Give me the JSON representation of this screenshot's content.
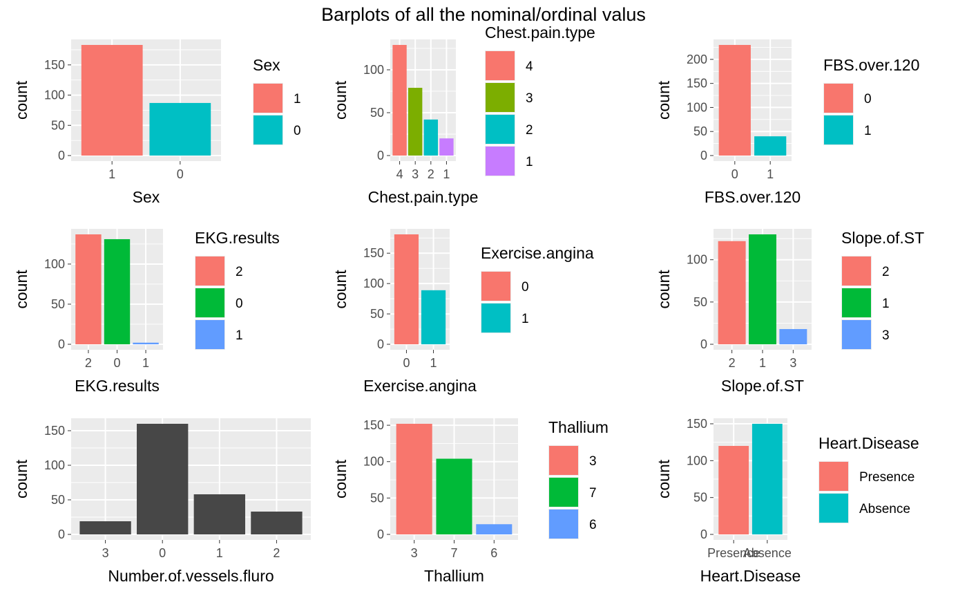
{
  "title": "Barplots of all the nominal/ordinal valus",
  "colors": {
    "panel_bg": "#EBEBEB",
    "grid": "#FFFFFF",
    "axis_text": "#4D4D4D",
    "bar_dark": "#474747"
  },
  "chart_data": [
    {
      "type": "bar",
      "title": "",
      "xlabel": "Sex",
      "ylabel": "count",
      "categories": [
        "1",
        "0"
      ],
      "values": [
        183,
        87
      ],
      "colors": [
        "#F8766D",
        "#00BFC4"
      ],
      "ylim": [
        0,
        183
      ],
      "yticks": [
        0,
        50,
        100,
        150
      ],
      "legend": {
        "title": "Sex",
        "labels": [
          "1",
          "0"
        ],
        "position": "right"
      }
    },
    {
      "type": "bar",
      "title": "",
      "xlabel": "Chest.pain.type",
      "ylabel": "count",
      "categories": [
        "4",
        "3",
        "2",
        "1"
      ],
      "values": [
        129,
        79,
        42,
        20
      ],
      "colors": [
        "#F8766D",
        "#7CAE00",
        "#00BFC4",
        "#C77CFF"
      ],
      "ylim": [
        0,
        129
      ],
      "yticks": [
        0,
        50,
        100
      ],
      "legend": {
        "title": "Chest.pain.type",
        "labels": [
          "4",
          "3",
          "2",
          "1"
        ],
        "position": "right"
      }
    },
    {
      "type": "bar",
      "title": "",
      "xlabel": "FBS.over.120",
      "ylabel": "count",
      "categories": [
        "0",
        "1"
      ],
      "values": [
        230,
        40
      ],
      "colors": [
        "#F8766D",
        "#00BFC4"
      ],
      "ylim": [
        0,
        230
      ],
      "yticks": [
        0,
        50,
        100,
        150,
        200
      ],
      "legend": {
        "title": "FBS.over.120",
        "labels": [
          "0",
          "1"
        ],
        "position": "right"
      }
    },
    {
      "type": "bar",
      "title": "",
      "xlabel": "EKG.results",
      "ylabel": "count",
      "categories": [
        "2",
        "0",
        "1"
      ],
      "values": [
        137,
        131,
        2
      ],
      "colors": [
        "#F8766D",
        "#00BA38",
        "#619CFF"
      ],
      "ylim": [
        0,
        137
      ],
      "yticks": [
        0,
        50,
        100
      ],
      "legend": {
        "title": "EKG.results",
        "labels": [
          "2",
          "0",
          "1"
        ],
        "position": "right"
      }
    },
    {
      "type": "bar",
      "title": "",
      "xlabel": "Exercise.angina",
      "ylabel": "count",
      "categories": [
        "0",
        "1"
      ],
      "values": [
        181,
        89
      ],
      "colors": [
        "#F8766D",
        "#00BFC4"
      ],
      "ylim": [
        0,
        181
      ],
      "yticks": [
        0,
        50,
        100,
        150
      ],
      "legend": {
        "title": "Exercise.angina",
        "labels": [
          "0",
          "1"
        ],
        "position": "right"
      }
    },
    {
      "type": "bar",
      "title": "",
      "xlabel": "Slope.of.ST",
      "ylabel": "count",
      "categories": [
        "2",
        "1",
        "3"
      ],
      "values": [
        122,
        130,
        18
      ],
      "colors": [
        "#F8766D",
        "#00BA38",
        "#619CFF"
      ],
      "ylim": [
        0,
        130
      ],
      "yticks": [
        0,
        50,
        100
      ],
      "legend": {
        "title": "Slope.of.ST",
        "labels": [
          "2",
          "1",
          "3"
        ],
        "position": "right"
      }
    },
    {
      "type": "bar",
      "title": "",
      "xlabel": "Number.of.vessels.fluro",
      "ylabel": "count",
      "categories": [
        "3",
        "0",
        "1",
        "2"
      ],
      "values": [
        19,
        160,
        58,
        33
      ],
      "colors": [
        "#474747",
        "#474747",
        "#474747",
        "#474747"
      ],
      "ylim": [
        0,
        160
      ],
      "yticks": [
        0,
        50,
        100,
        150
      ],
      "legend": null
    },
    {
      "type": "bar",
      "title": "",
      "xlabel": "Thallium",
      "ylabel": "count",
      "categories": [
        "3",
        "7",
        "6"
      ],
      "values": [
        152,
        104,
        14
      ],
      "colors": [
        "#F8766D",
        "#00BA38",
        "#619CFF"
      ],
      "ylim": [
        0,
        152
      ],
      "yticks": [
        0,
        50,
        100,
        150
      ],
      "legend": {
        "title": "Thallium",
        "labels": [
          "3",
          "7",
          "6"
        ],
        "position": "right"
      }
    },
    {
      "type": "bar",
      "title": "",
      "xlabel": "Heart.Disease",
      "ylabel": "count",
      "categories": [
        "Presence",
        "Absence"
      ],
      "values": [
        120,
        150
      ],
      "colors": [
        "#F8766D",
        "#00BFC4"
      ],
      "ylim": [
        0,
        150
      ],
      "yticks": [
        0,
        50,
        100,
        150
      ],
      "legend": {
        "title": "Heart.Disease",
        "labels": [
          "Presence",
          "Absence"
        ],
        "position": "right"
      }
    }
  ]
}
